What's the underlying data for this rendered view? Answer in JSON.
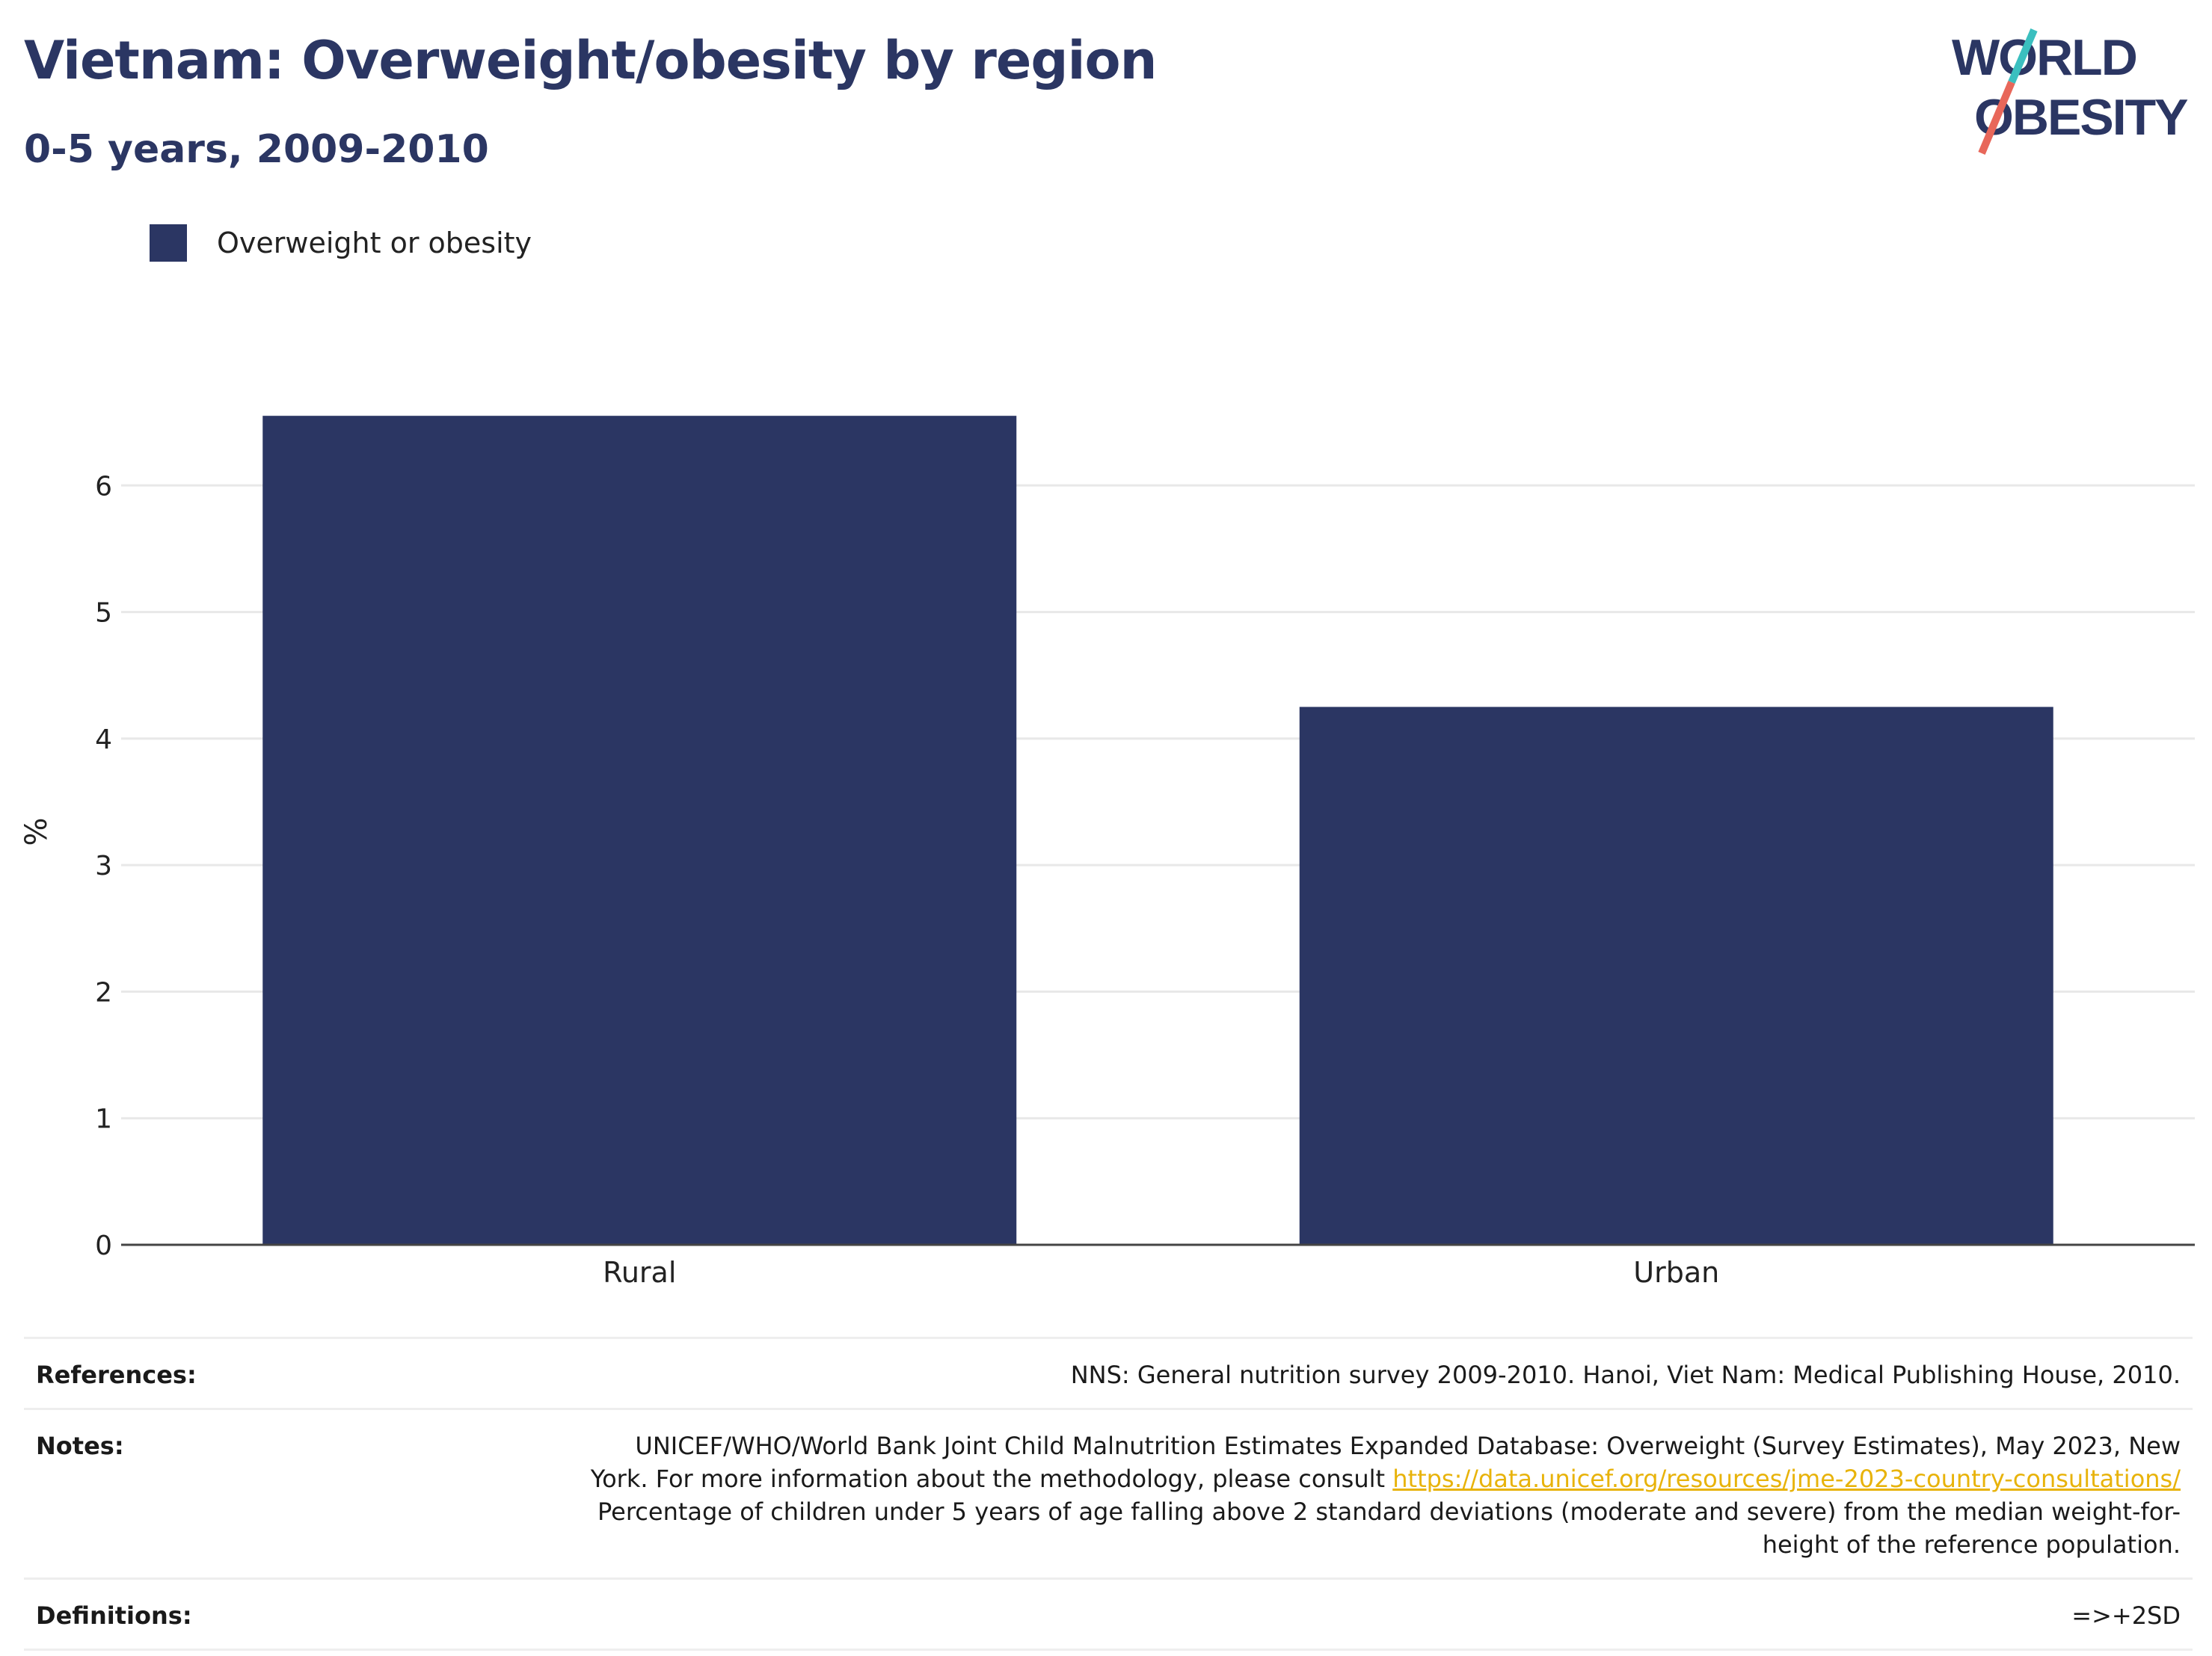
{
  "header": {
    "title": "Vietnam: Overweight/obesity by region",
    "subtitle": "0-5 years, 2009-2010"
  },
  "logo": {
    "line1": "WORLD",
    "line2": "OBESITY",
    "colors": {
      "text": "#2b3663",
      "slash_top": "#3bbfbf",
      "slash_bottom": "#e8675a"
    }
  },
  "legend": {
    "label": "Overweight or obesity",
    "color": "#2b3663"
  },
  "chart_data": {
    "type": "bar",
    "categories": [
      "Rural",
      "Urban"
    ],
    "series": [
      {
        "name": "Overweight or obesity",
        "values": [
          6.55,
          4.25
        ],
        "color": "#2b3663"
      }
    ],
    "ylabel": "%",
    "xlabel": "",
    "ylim": [
      0,
      7
    ],
    "yticks": [
      0,
      1,
      2,
      3,
      4,
      5,
      6
    ],
    "grid": true,
    "legend_position": "top-left"
  },
  "footer": {
    "references_label": "References:",
    "references_text": "NNS: General nutrition survey 2009-2010. Hanoi, Viet Nam: Medical Publishing House, 2010.",
    "notes_label": "Notes:",
    "notes_line1": "UNICEF/WHO/World Bank Joint Child Malnutrition Estimates Expanded Database: Overweight (Survey Estimates), May 2023, New",
    "notes_line2_prefix": "York. For more information about the methodology, please consult ",
    "notes_link": "https://data.unicef.org/resources/jme-2023-country-consultations/",
    "notes_line3": "Percentage of children under 5 years of age falling above 2 standard deviations (moderate and severe) from the median weight-for-",
    "notes_line4": "height of the reference population.",
    "definitions_label": "Definitions:",
    "definitions_text": "=>+2SD"
  }
}
